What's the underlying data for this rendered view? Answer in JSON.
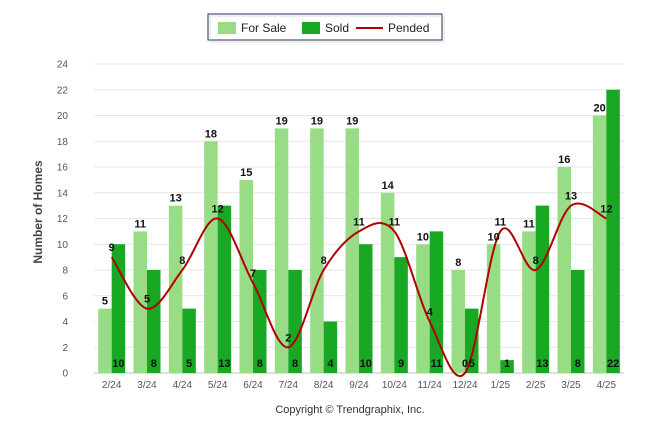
{
  "chart_data": {
    "type": "bar",
    "categories": [
      "2/24",
      "3/24",
      "4/24",
      "5/24",
      "6/24",
      "7/24",
      "8/24",
      "9/24",
      "10/24",
      "11/24",
      "12/24",
      "1/25",
      "2/25",
      "3/25",
      "4/25"
    ],
    "series": [
      {
        "name": "For Sale",
        "type": "bar",
        "color": "#98dd86",
        "values": [
          5,
          11,
          13,
          18,
          15,
          19,
          19,
          19,
          14,
          10,
          8,
          10,
          11,
          16,
          20
        ]
      },
      {
        "name": "Sold",
        "type": "bar",
        "color": "#18a823",
        "values": [
          10,
          8,
          5,
          13,
          8,
          8,
          4,
          10,
          9,
          11,
          5,
          1,
          13,
          8,
          22
        ]
      },
      {
        "name": "Pended",
        "type": "line",
        "color": "#b30000",
        "values": [
          9,
          5,
          8,
          12,
          7,
          2,
          8,
          11,
          11,
          4,
          0,
          11,
          8,
          13,
          12
        ]
      }
    ],
    "xlabel": "",
    "ylabel": "Number of Homes",
    "ylim": [
      0,
      24
    ],
    "yticks": [
      0,
      2,
      4,
      6,
      8,
      10,
      12,
      14,
      16,
      18,
      20,
      22,
      24
    ],
    "grid": true,
    "legend_position": "top-center",
    "footer": "Copyright © Trendgraphix, Inc."
  }
}
